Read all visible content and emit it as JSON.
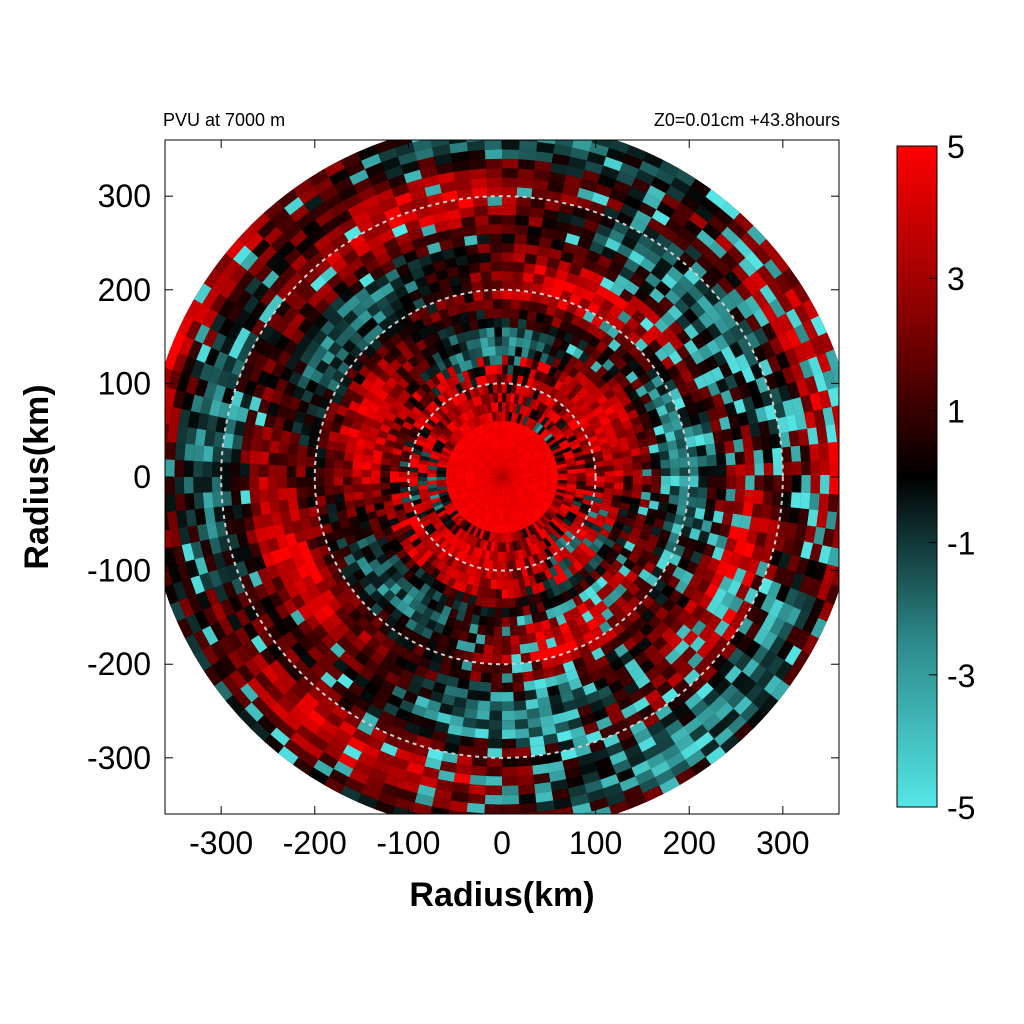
{
  "chart_data": {
    "type": "heatmap",
    "title_left": "PVU at  7000 m",
    "title_right": "Z0=0.01cm  +43.8hours",
    "xlabel": "Radius(km)",
    "ylabel": "Radius(km)",
    "xlim": [
      -360,
      360
    ],
    "ylim": [
      -360,
      360
    ],
    "x_ticks": [
      "-300",
      "-200",
      "-100",
      "0",
      "100",
      "200",
      "300"
    ],
    "x_tick_values": [
      -300,
      -200,
      -100,
      0,
      100,
      200,
      300
    ],
    "y_ticks": [
      "300",
      "200",
      "100",
      "0",
      "-100",
      "-200",
      "-300"
    ],
    "y_tick_values": [
      300,
      200,
      100,
      0,
      -100,
      -200,
      -300
    ],
    "domain_radius_km": 380,
    "reference_circles_km": [
      100,
      200,
      300
    ],
    "reference_circle_style": "dashed light gray",
    "field_features": {
      "core_value_pvu": 5,
      "core_radius_km": 60,
      "background_value_pvu": 0.8,
      "negative_patches": "cyan bands mainly in the eastern and southern outer ring (150-350 km)"
    },
    "colorbar": {
      "min": -5,
      "max": 5,
      "tick_labels": [
        "5",
        "3",
        "1",
        "-1",
        "-3",
        "-5"
      ],
      "tick_values": [
        5,
        3,
        1,
        -1,
        -3,
        -5
      ],
      "colors": [
        {
          "value": -5,
          "color": "#55e6e6"
        },
        {
          "value": -2.5,
          "color": "#2d8a8a"
        },
        {
          "value": 0,
          "color": "#000000"
        },
        {
          "value": 2.5,
          "color": "#8a0000"
        },
        {
          "value": 5,
          "color": "#ff0000"
        }
      ]
    },
    "grid": false,
    "legend": "colorbar right"
  }
}
